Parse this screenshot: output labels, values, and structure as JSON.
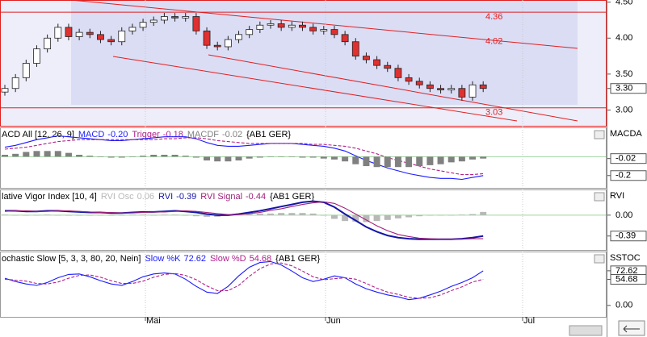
{
  "chart_data": [
    {
      "type": "candlestick",
      "axis_title": null,
      "open": [
        3.25,
        3.3,
        3.45,
        3.65,
        3.85,
        4.0,
        4.15,
        4.02,
        4.08,
        4.05,
        3.98,
        3.95,
        4.1,
        4.15,
        4.22,
        4.25,
        4.3,
        4.28,
        4.3,
        4.1,
        3.9,
        3.88,
        3.98,
        4.05,
        4.12,
        4.18,
        4.2,
        4.15,
        4.18,
        4.15,
        4.1,
        4.12,
        4.05,
        3.95,
        3.75,
        3.7,
        3.62,
        3.58,
        3.45,
        3.4,
        3.35,
        3.3,
        3.28,
        3.3,
        3.18,
        3.35
      ],
      "high": [
        3.35,
        3.5,
        3.7,
        3.9,
        4.05,
        4.2,
        4.2,
        4.13,
        4.13,
        4.1,
        4.03,
        4.15,
        4.2,
        4.27,
        4.3,
        4.35,
        4.35,
        4.35,
        4.35,
        4.15,
        3.95,
        4.03,
        4.1,
        4.17,
        4.23,
        4.25,
        4.25,
        4.23,
        4.23,
        4.2,
        4.17,
        4.17,
        4.1,
        4.0,
        3.8,
        3.75,
        3.67,
        3.63,
        3.5,
        3.45,
        3.4,
        3.35,
        3.35,
        3.35,
        3.4,
        3.4
      ],
      "low": [
        3.2,
        3.25,
        3.4,
        3.6,
        3.8,
        3.95,
        3.97,
        3.97,
        4.0,
        3.93,
        3.9,
        3.9,
        4.05,
        4.1,
        4.17,
        4.2,
        4.23,
        4.23,
        4.05,
        3.85,
        3.83,
        3.83,
        3.93,
        4.0,
        4.07,
        4.13,
        4.1,
        4.1,
        4.1,
        4.05,
        4.05,
        4.0,
        3.9,
        3.7,
        3.65,
        3.57,
        3.53,
        3.4,
        3.35,
        3.3,
        3.25,
        3.23,
        3.23,
        3.13,
        3.13,
        3.25
      ],
      "close": [
        3.3,
        3.45,
        3.65,
        3.85,
        4.0,
        4.15,
        4.02,
        4.08,
        4.05,
        3.98,
        3.95,
        4.1,
        4.15,
        4.22,
        4.25,
        4.3,
        4.28,
        4.3,
        4.1,
        3.9,
        3.88,
        3.98,
        4.05,
        4.12,
        4.18,
        4.2,
        4.15,
        4.18,
        4.15,
        4.1,
        4.12,
        4.05,
        3.95,
        3.75,
        3.7,
        3.62,
        3.58,
        3.45,
        3.4,
        3.35,
        3.3,
        3.28,
        3.3,
        3.18,
        3.35,
        3.3
      ],
      "up_color": "#ffffff",
      "down_color": "#e03030",
      "ylim": [
        2.77,
        4.53
      ],
      "yticks": [
        {
          "value": 3,
          "label": "3.00"
        },
        {
          "value": 3.5,
          "label": "3.50"
        },
        {
          "value": 4,
          "label": "4.00"
        },
        {
          "value": 4.5,
          "label": "4.50"
        }
      ],
      "annotations": [
        {
          "value": 4.36,
          "label": "4.36",
          "line": true
        },
        {
          "value": 4.02,
          "label": "4.02",
          "line": false
        },
        {
          "value": 3.03,
          "label": "3.03",
          "line": true
        }
      ],
      "annotation_color": "#e02020",
      "last_labels": [
        {
          "value": 3.3,
          "label": "3.30"
        }
      ]
    },
    {
      "type": "indicator",
      "axis_title": "MACDA",
      "header_prefix": "ACD All [12, 26, 9]",
      "header_suffix": "{AB1 GER}",
      "ylim": [
        -0.33,
        0.31
      ],
      "zero_line": true,
      "yticks": [],
      "series": [
        {
          "name": "MACD",
          "legend_label": "-0.20",
          "color": "#1a1aff",
          "style": "line",
          "values": [
            0.1,
            0.12,
            0.15,
            0.18,
            0.2,
            0.22,
            0.21,
            0.2,
            0.19,
            0.18,
            0.17,
            0.17,
            0.18,
            0.19,
            0.2,
            0.21,
            0.21,
            0.21,
            0.19,
            0.15,
            0.12,
            0.11,
            0.11,
            0.12,
            0.13,
            0.14,
            0.14,
            0.14,
            0.13,
            0.12,
            0.11,
            0.09,
            0.06,
            0.01,
            -0.04,
            -0.08,
            -0.12,
            -0.15,
            -0.18,
            -0.2,
            -0.22,
            -0.23,
            -0.23,
            -0.24,
            -0.22,
            -0.2
          ]
        },
        {
          "name": "Trigger",
          "legend_label": "-0.18",
          "color": "#b0208c",
          "style": "dashed",
          "values": [
            0.08,
            0.09,
            0.1,
            0.12,
            0.14,
            0.16,
            0.17,
            0.18,
            0.18,
            0.18,
            0.18,
            0.18,
            0.18,
            0.18,
            0.18,
            0.19,
            0.19,
            0.2,
            0.2,
            0.19,
            0.17,
            0.16,
            0.15,
            0.14,
            0.14,
            0.14,
            0.14,
            0.14,
            0.14,
            0.13,
            0.13,
            0.12,
            0.11,
            0.09,
            0.06,
            0.03,
            -0.01,
            -0.04,
            -0.07,
            -0.1,
            -0.13,
            -0.15,
            -0.17,
            -0.19,
            -0.19,
            -0.18
          ]
        },
        {
          "name": "MACDF",
          "legend_label": "-0.02",
          "color": "#808080",
          "style": "histogram",
          "values": [
            0.02,
            0.03,
            0.05,
            0.06,
            0.06,
            0.06,
            0.04,
            0.02,
            0.01,
            0.0,
            -0.01,
            -0.01,
            0.0,
            0.01,
            0.02,
            0.02,
            0.02,
            0.01,
            -0.01,
            -0.04,
            -0.05,
            -0.05,
            -0.04,
            -0.02,
            -0.01,
            0.0,
            0.0,
            0.0,
            -0.01,
            -0.01,
            -0.02,
            -0.03,
            -0.05,
            -0.08,
            -0.1,
            -0.11,
            -0.11,
            -0.11,
            -0.11,
            -0.1,
            -0.09,
            -0.08,
            -0.06,
            -0.05,
            -0.03,
            -0.02
          ]
        }
      ],
      "last_labels": [
        {
          "value": -0.02,
          "label": "-0.02"
        },
        {
          "value": -0.2,
          "label": "-0.2"
        }
      ]
    },
    {
      "type": "indicator",
      "axis_title": "RVI",
      "header_prefix": "lative Vigor Index [10, 4]",
      "header_suffix": "{AB1 GER}",
      "ylim": [
        -0.65,
        0.48
      ],
      "zero_line": true,
      "yticks": [
        {
          "value": 0,
          "label": "0.00"
        }
      ],
      "series": [
        {
          "name": "RVI Osc",
          "legend_label": "0.06",
          "color": "#b8b8b8",
          "style": "histogram",
          "values": [
            0.01,
            0.0,
            -0.01,
            0.0,
            0.01,
            0.0,
            -0.01,
            -0.01,
            -0.01,
            0.0,
            -0.01,
            0.0,
            0.01,
            0.01,
            0.0,
            0.01,
            0.01,
            -0.01,
            -0.02,
            -0.03,
            -0.03,
            -0.01,
            0.01,
            0.02,
            0.03,
            0.03,
            0.04,
            0.04,
            0.04,
            0.03,
            -0.01,
            -0.07,
            -0.11,
            -0.12,
            -0.13,
            -0.11,
            -0.09,
            -0.06,
            -0.04,
            -0.02,
            -0.01,
            0.0,
            0.0,
            0.01,
            0.02,
            0.06
          ]
        },
        {
          "name": "RVI",
          "legend_label": "-0.39",
          "color": "#1515a8",
          "style": "bold",
          "values": [
            0.08,
            0.08,
            0.07,
            0.07,
            0.08,
            0.08,
            0.07,
            0.06,
            0.05,
            0.05,
            0.04,
            0.04,
            0.05,
            0.06,
            0.06,
            0.07,
            0.08,
            0.07,
            0.05,
            0.02,
            0.0,
            0.0,
            0.02,
            0.05,
            0.08,
            0.12,
            0.16,
            0.2,
            0.24,
            0.26,
            0.24,
            0.15,
            0.02,
            -0.1,
            -0.22,
            -0.31,
            -0.38,
            -0.42,
            -0.44,
            -0.45,
            -0.45,
            -0.45,
            -0.45,
            -0.44,
            -0.42,
            -0.39
          ]
        },
        {
          "name": "RVI Signal",
          "legend_label": "-0.44",
          "color": "#a0207a",
          "style": "line",
          "values": [
            0.07,
            0.08,
            0.08,
            0.07,
            0.07,
            0.08,
            0.08,
            0.07,
            0.06,
            0.05,
            0.05,
            0.04,
            0.04,
            0.05,
            0.06,
            0.06,
            0.07,
            0.08,
            0.07,
            0.05,
            0.03,
            0.01,
            0.01,
            0.03,
            0.05,
            0.09,
            0.12,
            0.16,
            0.2,
            0.23,
            0.25,
            0.22,
            0.13,
            0.02,
            -0.09,
            -0.2,
            -0.29,
            -0.36,
            -0.4,
            -0.43,
            -0.44,
            -0.45,
            -0.45,
            -0.45,
            -0.44,
            -0.44
          ]
        }
      ],
      "last_labels": [
        {
          "value": -0.39,
          "label": "-0.39"
        }
      ]
    },
    {
      "type": "indicator",
      "axis_title": "SSTOC",
      "header_prefix": "ochastic Slow [5, 3, 3, 80, 20, Nein]",
      "header_suffix": "{AB1 GER}",
      "ylim": [
        -24,
        113
      ],
      "zero_line": false,
      "yticks": [
        {
          "value": 0,
          "label": "0.00"
        }
      ],
      "series": [
        {
          "name": "Slow %K",
          "legend_label": "72.62",
          "color": "#1a1aff",
          "style": "line",
          "values": [
            57,
            50,
            45,
            42,
            48,
            58,
            65,
            66,
            60,
            52,
            45,
            42,
            50,
            60,
            66,
            68,
            66,
            55,
            40,
            28,
            25,
            40,
            62,
            80,
            90,
            92,
            85,
            72,
            58,
            50,
            55,
            62,
            58,
            45,
            35,
            28,
            22,
            18,
            12,
            15,
            22,
            30,
            40,
            48,
            58,
            72.62
          ]
        },
        {
          "name": "Slow %D",
          "legend_label": "54.68",
          "color": "#b0208c",
          "style": "dashed",
          "values": [
            55,
            53,
            51,
            46,
            45,
            49,
            57,
            63,
            64,
            59,
            52,
            46,
            46,
            51,
            59,
            65,
            67,
            63,
            54,
            41,
            31,
            31,
            42,
            61,
            77,
            87,
            89,
            83,
            72,
            60,
            54,
            56,
            58,
            55,
            46,
            36,
            28,
            23,
            17,
            15,
            16,
            22,
            31,
            39,
            49,
            54.68
          ]
        }
      ],
      "last_labels": [
        {
          "value": 72.62,
          "label": "72.62"
        },
        {
          "value": 54.68,
          "label": "54.68"
        }
      ],
      "x_labels": [
        "Mai",
        "Jun",
        "Jul"
      ]
    }
  ]
}
